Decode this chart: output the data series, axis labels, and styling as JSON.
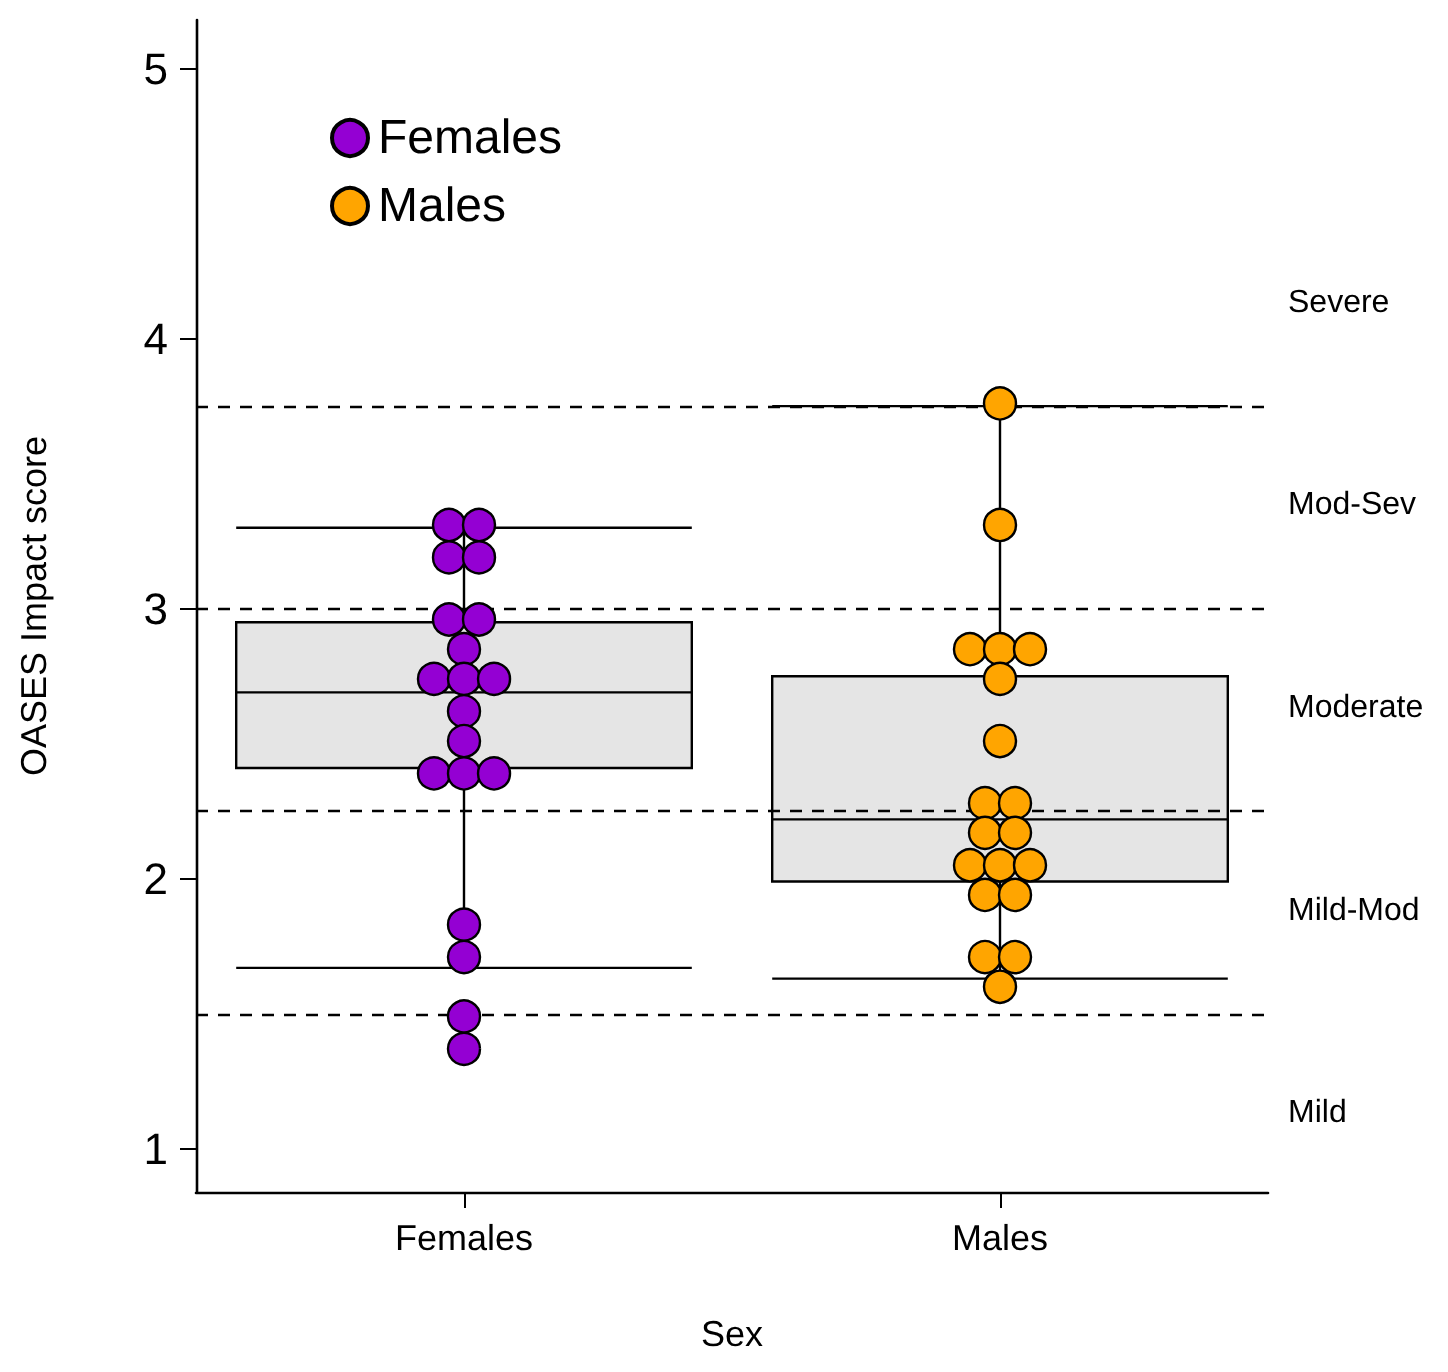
{
  "chart_data": {
    "type": "box",
    "xlabel": "Sex",
    "ylabel": "OASES Impact score",
    "categories": [
      "Females",
      "Males"
    ],
    "boxes": [
      {
        "low": 1.67,
        "q1": 2.41,
        "median": 2.69,
        "q3": 2.95,
        "high": 3.3
      },
      {
        "low": 1.63,
        "q1": 1.99,
        "median": 2.22,
        "q3": 2.75,
        "high": 3.75
      }
    ],
    "series": [
      {
        "type": "scatter",
        "name": "Females",
        "color": "#9400d3",
        "x": [
          "Females",
          "Females",
          "Females",
          "Females",
          "Females",
          "Females",
          "Females",
          "Females",
          "Females",
          "Females",
          "Females",
          "Females",
          "Females",
          "Females",
          "Females",
          "Females",
          "Females",
          "Females",
          "Females"
        ],
        "values": [
          3.31,
          3.31,
          3.19,
          3.19,
          2.96,
          2.96,
          2.85,
          2.74,
          2.74,
          2.74,
          2.62,
          2.51,
          2.39,
          2.39,
          2.39,
          1.83,
          1.71,
          1.49,
          1.37
        ]
      },
      {
        "type": "scatter",
        "name": "Males",
        "color": "#ffa500",
        "x": [
          "Males",
          "Males",
          "Males",
          "Males",
          "Males",
          "Males",
          "Males",
          "Males",
          "Males",
          "Males",
          "Males",
          "Males",
          "Males",
          "Males",
          "Males",
          "Males",
          "Males",
          "Males",
          "Males"
        ],
        "values": [
          3.76,
          3.31,
          2.85,
          2.85,
          2.85,
          2.74,
          2.51,
          2.28,
          2.28,
          2.17,
          2.17,
          2.05,
          2.05,
          2.05,
          1.94,
          1.94,
          1.71,
          1.71,
          1.6
        ]
      }
    ],
    "ylim": [
      0.84,
      5.18
    ],
    "yticks": [
      1,
      2,
      3,
      4,
      5
    ],
    "ref_lines": [
      {
        "axis": "y",
        "value": 1.5,
        "line_style": "dashed",
        "color": "#000000"
      },
      {
        "axis": "y",
        "value": 2.25,
        "line_style": "dashed",
        "color": "#000000"
      },
      {
        "axis": "y",
        "value": 3,
        "line_style": "dashed",
        "color": "#000000"
      },
      {
        "axis": "y",
        "value": 3.75,
        "line_style": "dashed",
        "color": "#000000"
      }
    ],
    "annotations": [
      "Severe",
      "Mod-Sev",
      "Moderate",
      "Mild-Mod",
      "Mild"
    ],
    "legend": "top left",
    "marker": "circle",
    "grid": false
  }
}
